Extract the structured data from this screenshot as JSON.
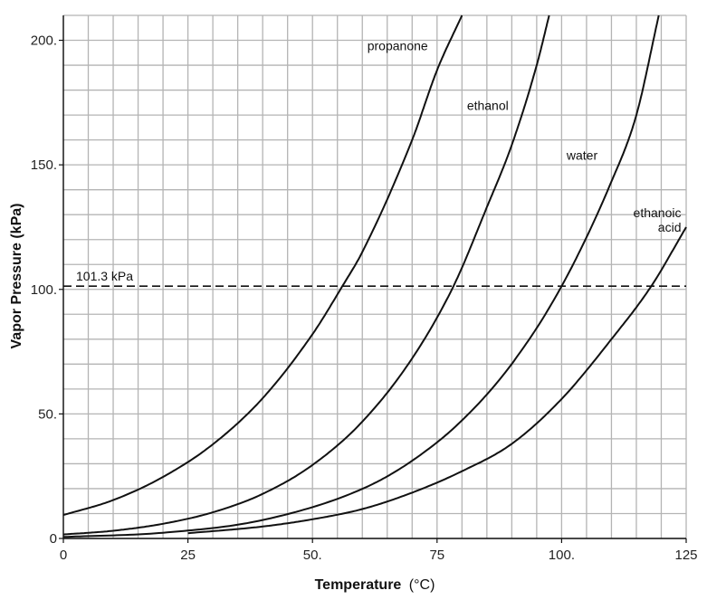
{
  "chart_data": {
    "type": "line",
    "xlabel": "Temperature",
    "xlabel_unit": "(°C)",
    "ylabel": "Vapor Pressure (kPa)",
    "xlim": [
      0,
      125
    ],
    "ylim": [
      0,
      210
    ],
    "x_ticks": [
      0,
      25,
      50,
      75,
      100,
      125
    ],
    "x_tick_labels": [
      "0",
      "25",
      "50.",
      "75",
      "100.",
      "125"
    ],
    "y_ticks": [
      0,
      50,
      100,
      150,
      200
    ],
    "y_tick_labels": [
      "0",
      "50.",
      "100.",
      "150.",
      "200."
    ],
    "grid": true,
    "grid_step_x": 5,
    "grid_step_y": 10,
    "colors": {
      "line": "#111111",
      "grid": "#b4b4b4",
      "axis": "#111111"
    },
    "reference_line": {
      "y": 101.3,
      "label": "101.3 kPa",
      "style": "dashed"
    },
    "series": [
      {
        "name": "propanone",
        "x": [
          0,
          10,
          20,
          30,
          40,
          50,
          56,
          60,
          70,
          75,
          80
        ],
        "y": [
          9.4,
          15.4,
          24.7,
          37.8,
          56.3,
          82.0,
          101.3,
          115.0,
          160.0,
          188.0,
          210.0
        ]
      },
      {
        "name": "ethanol",
        "x": [
          0,
          10,
          20,
          30,
          40,
          50,
          60,
          70,
          78.3,
          85,
          90,
          95,
          97.5
        ],
        "y": [
          1.6,
          3.1,
          5.9,
          10.5,
          17.9,
          29.5,
          46.9,
          72.3,
          101.3,
          133.0,
          158.0,
          190.0,
          210.0
        ]
      },
      {
        "name": "water",
        "x": [
          0,
          20,
          40,
          60,
          70,
          80,
          90,
          100,
          110,
          115,
          119.5
        ],
        "y": [
          0.6,
          2.3,
          7.4,
          19.9,
          31.2,
          47.4,
          70.1,
          101.3,
          143.3,
          170.0,
          210.0
        ]
      },
      {
        "name": "ethanoic\nacid",
        "x": [
          25,
          40,
          50,
          60,
          70,
          80,
          90,
          100,
          110,
          118,
          125
        ],
        "y": [
          2.1,
          4.8,
          7.7,
          11.8,
          18.4,
          27.0,
          38.0,
          56.0,
          80.0,
          101.3,
          125.0
        ]
      }
    ]
  }
}
